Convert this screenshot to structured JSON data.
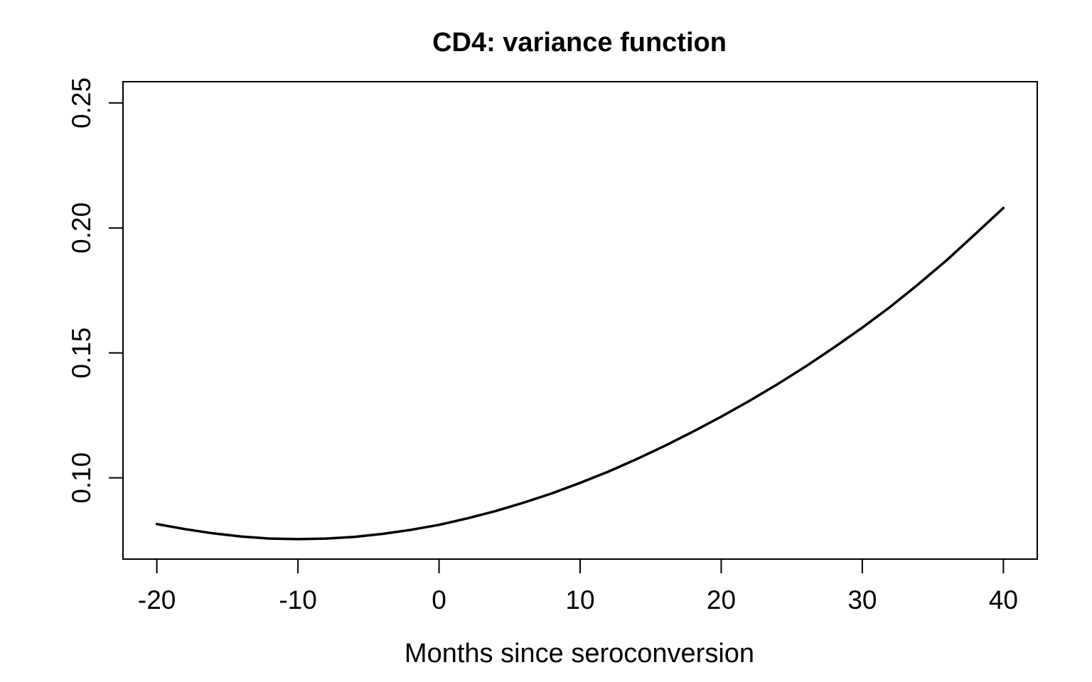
{
  "chart_data": {
    "type": "line",
    "title": "CD4: variance function",
    "xlabel": "Months since seroconversion",
    "ylabel": "",
    "xlim": [
      -22.4,
      42.4
    ],
    "ylim": [
      0.0675,
      0.2585
    ],
    "xticks": [
      -20,
      -10,
      0,
      10,
      20,
      30,
      40
    ],
    "xtick_labels": [
      "-20",
      "-10",
      "0",
      "10",
      "20",
      "30",
      "40"
    ],
    "yticks": [
      0.1,
      0.15,
      0.2,
      0.25
    ],
    "ytick_labels": [
      "0.10",
      "0.15",
      "0.20",
      "0.25"
    ],
    "grid": false,
    "line_color": "#000000",
    "series": [
      {
        "x": [
          -20,
          -18,
          -16,
          -14,
          -12,
          -10,
          -8,
          -6,
          -4,
          -2,
          0,
          2,
          4,
          6,
          8,
          10,
          12,
          14,
          16,
          18,
          20,
          22,
          24,
          26,
          28,
          30,
          32,
          34,
          36,
          38,
          40
        ],
        "y": [
          0.0815,
          0.0795,
          0.0778,
          0.0765,
          0.0757,
          0.0755,
          0.0757,
          0.0764,
          0.0776,
          0.0792,
          0.0812,
          0.0838,
          0.0867,
          0.0901,
          0.0938,
          0.098,
          0.1025,
          0.1075,
          0.1128,
          0.1185,
          0.1245,
          0.1308,
          0.1375,
          0.1446,
          0.1522,
          0.1601,
          0.1685,
          0.1776,
          0.1872,
          0.1975,
          0.208
        ]
      }
    ]
  }
}
